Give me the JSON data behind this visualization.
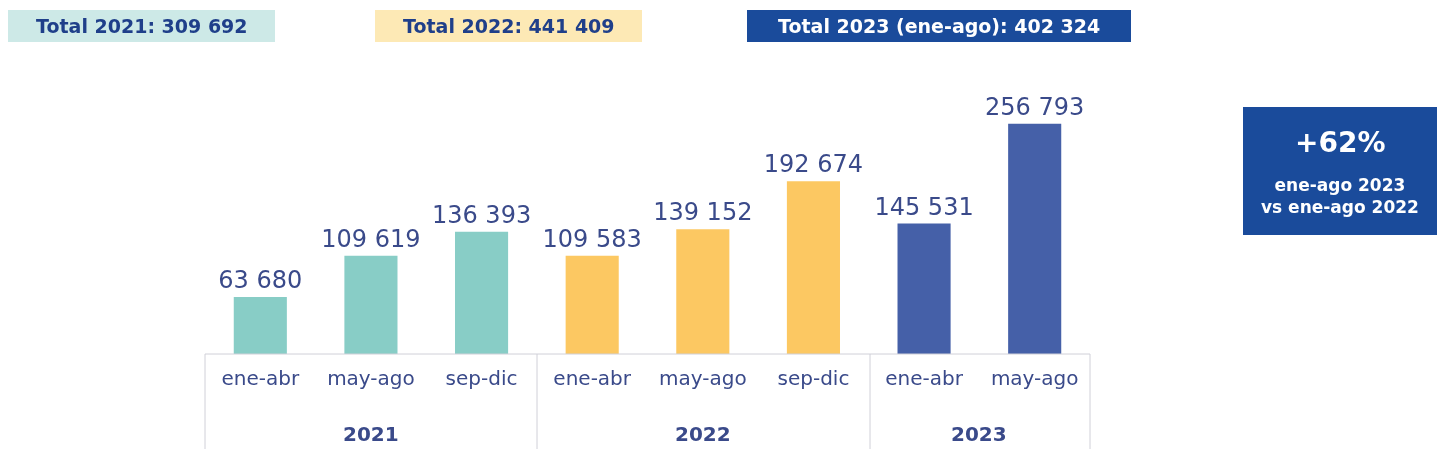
{
  "chart_data": {
    "type": "bar",
    "categories": [
      "ene-abr",
      "may-ago",
      "sep-dic",
      "ene-abr",
      "may-ago",
      "sep-dic",
      "ene-abr",
      "may-ago"
    ],
    "values": [
      63680,
      109619,
      136393,
      109583,
      139152,
      192674,
      145531,
      256793
    ],
    "colors": [
      "#88cdc6",
      "#88cdc6",
      "#88cdc6",
      "#fcc862",
      "#fcc862",
      "#fcc862",
      "#4560a8",
      "#4560a8"
    ],
    "value_labels": [
      "63 680",
      "109 619",
      "136 393",
      "109 583",
      "139 152",
      "192 674",
      "145 531",
      "256 793"
    ],
    "annotations": [
      "2021",
      "2022",
      "2023",
      "Total 2021: 309 692",
      "Total 2022: 441 409",
      "Total 2023 (ene-ago): 402 324",
      "+62%",
      "ene-ago 2023\nvs ene-ago 2022"
    ],
    "grid": false,
    "legend": false
  }
}
